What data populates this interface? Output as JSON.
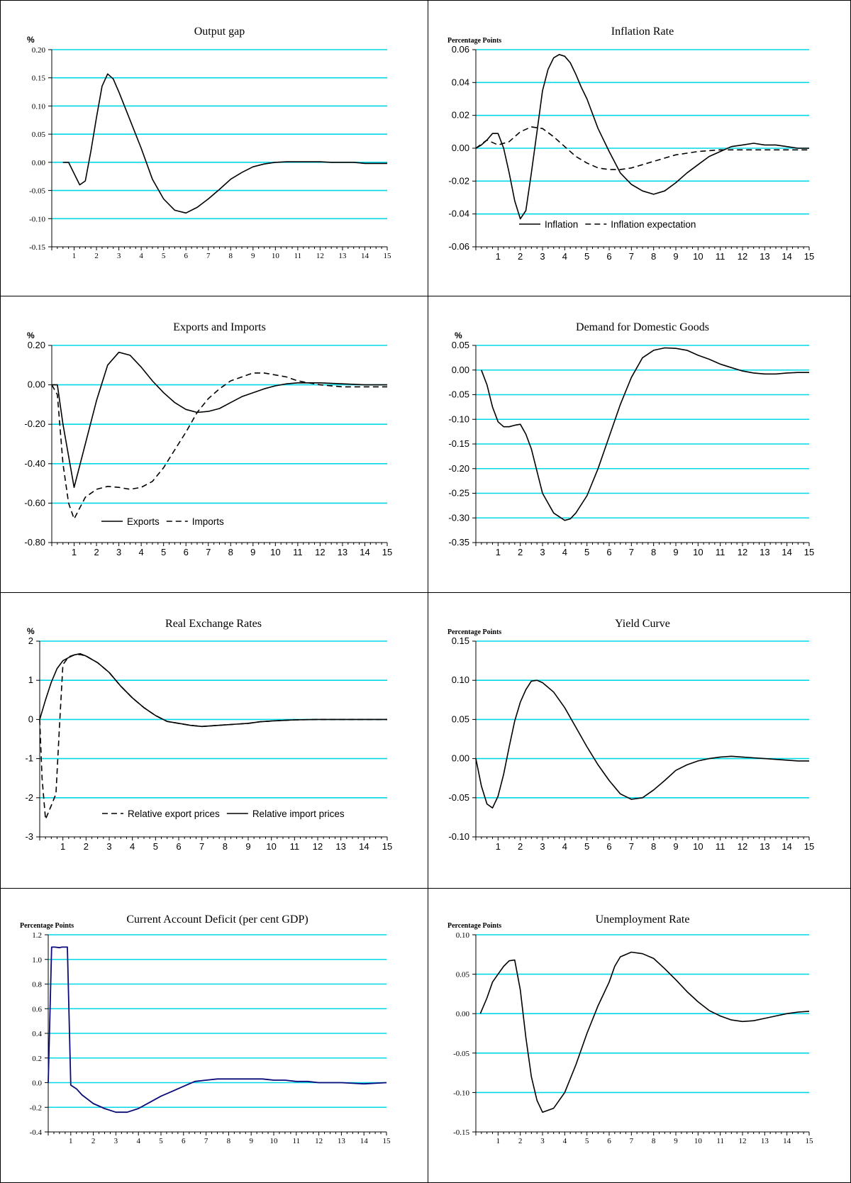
{
  "chart_data": [
    {
      "type": "line",
      "title": "Output gap",
      "unit": "%",
      "ylim": [
        -0.15,
        0.2
      ],
      "yticks": [
        "0.20",
        "0.15",
        "0.10",
        "0.05",
        "0.00",
        "-0.05",
        "-0.10",
        "-0.15"
      ],
      "xlim": [
        0,
        15
      ],
      "xticks": [
        "1",
        "2",
        "3",
        "4",
        "5",
        "6",
        "7",
        "8",
        "9",
        "10",
        "11",
        "12",
        "13",
        "14",
        "15"
      ],
      "grid": true,
      "series": [
        {
          "style": "solid",
          "color": "#000000",
          "x": [
            0.5,
            0.75,
            1,
            1.25,
            1.5,
            1.75,
            2,
            2.25,
            2.5,
            2.75,
            3,
            3.5,
            4,
            4.5,
            5,
            5.5,
            6,
            6.5,
            7,
            7.5,
            8,
            8.5,
            9,
            9.5,
            10,
            10.5,
            11,
            11.5,
            12,
            12.5,
            13,
            13.5,
            14,
            14.5,
            15
          ],
          "y": [
            0,
            0,
            -0.02,
            -0.04,
            -0.033,
            0.02,
            0.08,
            0.135,
            0.157,
            0.148,
            0.125,
            0.075,
            0.025,
            -0.03,
            -0.065,
            -0.085,
            -0.09,
            -0.08,
            -0.065,
            -0.048,
            -0.03,
            -0.018,
            -0.008,
            -0.003,
            0,
            0.001,
            0.001,
            0.001,
            0.001,
            0,
            0,
            0,
            -0.002,
            -0.002,
            -0.002
          ]
        }
      ]
    },
    {
      "type": "line",
      "title": "Inflation Rate",
      "unit": "Percentage Points",
      "ylim": [
        -0.06,
        0.06
      ],
      "yticks": [
        "0.06",
        "0.04",
        "0.02",
        "0.00",
        "-0.02",
        "-0.04",
        "-0.06"
      ],
      "xlim": [
        0,
        15
      ],
      "xticks": [
        "1",
        "2",
        "3",
        "4",
        "5",
        "6",
        "7",
        "8",
        "9",
        "10",
        "11",
        "12",
        "13",
        "14",
        "15"
      ],
      "grid": true,
      "legend": {
        "placement": "bottom-center",
        "items": [
          "Inflation",
          "Inflation expectation"
        ]
      },
      "series": [
        {
          "name": "Inflation",
          "style": "solid",
          "color": "#000000",
          "x": [
            0,
            0.25,
            0.5,
            0.75,
            1,
            1.25,
            1.5,
            1.75,
            2,
            2.25,
            2.5,
            2.75,
            3,
            3.25,
            3.5,
            3.75,
            4,
            4.25,
            4.5,
            4.75,
            5,
            5.5,
            6,
            6.5,
            7,
            7.5,
            8,
            8.5,
            9,
            9.5,
            10,
            10.5,
            11,
            11.5,
            12,
            12.5,
            13,
            13.5,
            14,
            14.5,
            15
          ],
          "y": [
            0,
            0.002,
            0.005,
            0.009,
            0.009,
            0,
            -0.015,
            -0.032,
            -0.043,
            -0.038,
            -0.015,
            0.01,
            0.035,
            0.048,
            0.055,
            0.057,
            0.056,
            0.052,
            0.045,
            0.037,
            0.03,
            0.012,
            -0.002,
            -0.015,
            -0.022,
            -0.026,
            -0.028,
            -0.026,
            -0.021,
            -0.015,
            -0.01,
            -0.005,
            -0.002,
            0.001,
            0.002,
            0.003,
            0.002,
            0.002,
            0.001,
            0,
            0
          ]
        },
        {
          "name": "Inflation expectation",
          "style": "dashed",
          "color": "#000000",
          "x": [
            0,
            0.5,
            1,
            1.5,
            2,
            2.5,
            3,
            3.5,
            4,
            4.5,
            5,
            5.5,
            6,
            6.5,
            7,
            7.5,
            8,
            8.5,
            9,
            9.5,
            10,
            11,
            12,
            13,
            14,
            15
          ],
          "y": [
            0,
            0.005,
            0.002,
            0.004,
            0.01,
            0.013,
            0.012,
            0.007,
            0.001,
            -0.005,
            -0.009,
            -0.012,
            -0.013,
            -0.013,
            -0.012,
            -0.01,
            -0.008,
            -0.006,
            -0.004,
            -0.003,
            -0.002,
            -0.001,
            -0.001,
            -0.001,
            -0.001,
            -0.001
          ]
        }
      ]
    },
    {
      "type": "line",
      "title": "Exports and Imports",
      "unit": "%",
      "ylim": [
        -0.8,
        0.2
      ],
      "yticks": [
        "0.20",
        "0.00",
        "-0.20",
        "-0.40",
        "-0.60",
        "-0.80"
      ],
      "xlim": [
        0,
        15
      ],
      "xticks": [
        "1",
        "2",
        "3",
        "4",
        "5",
        "6",
        "7",
        "8",
        "9",
        "10",
        "11",
        "12",
        "13",
        "14",
        "15"
      ],
      "grid": true,
      "legend": {
        "placement": "bottom-left",
        "items": [
          "Exports",
          "Imports"
        ]
      },
      "series": [
        {
          "name": "Exports",
          "style": "solid",
          "color": "#000000",
          "x": [
            0,
            0.25,
            0.5,
            1,
            1.5,
            2,
            2.5,
            3,
            3.5,
            4,
            4.5,
            5,
            5.5,
            6,
            6.5,
            7,
            7.5,
            8,
            8.5,
            9,
            9.5,
            10,
            10.5,
            11,
            12,
            13,
            14,
            15
          ],
          "y": [
            0,
            0,
            -0.2,
            -0.52,
            -0.3,
            -0.08,
            0.1,
            0.165,
            0.15,
            0.09,
            0.02,
            -0.04,
            -0.09,
            -0.125,
            -0.14,
            -0.135,
            -0.12,
            -0.09,
            -0.06,
            -0.04,
            -0.02,
            -0.005,
            0.005,
            0.01,
            0.01,
            0.005,
            0,
            0
          ]
        },
        {
          "name": "Imports",
          "style": "dashed",
          "color": "#000000",
          "x": [
            0,
            0.25,
            0.5,
            0.75,
            1,
            1.5,
            2,
            2.5,
            3,
            3.5,
            4,
            4.5,
            5,
            5.5,
            6,
            6.5,
            7,
            7.5,
            8,
            8.5,
            9,
            9.5,
            10,
            10.5,
            11,
            11.5,
            12,
            13,
            14,
            15
          ],
          "y": [
            0,
            -0.05,
            -0.4,
            -0.6,
            -0.68,
            -0.57,
            -0.53,
            -0.515,
            -0.52,
            -0.53,
            -0.52,
            -0.49,
            -0.42,
            -0.33,
            -0.24,
            -0.14,
            -0.07,
            -0.02,
            0.02,
            0.04,
            0.06,
            0.06,
            0.05,
            0.04,
            0.02,
            0.01,
            0,
            -0.01,
            -0.01,
            -0.01
          ]
        }
      ]
    },
    {
      "type": "line",
      "title": "Demand for Domestic Goods",
      "unit": "%",
      "ylim": [
        -0.35,
        0.05
      ],
      "yticks": [
        "0.05",
        "0.00",
        "-0.05",
        "-0.10",
        "-0.15",
        "-0.20",
        "-0.25",
        "-0.30",
        "-0.35"
      ],
      "xlim": [
        0,
        15
      ],
      "xticks": [
        "1",
        "2",
        "3",
        "4",
        "5",
        "6",
        "7",
        "8",
        "9",
        "10",
        "11",
        "12",
        "13",
        "14",
        "15"
      ],
      "grid": true,
      "series": [
        {
          "style": "solid",
          "color": "#000000",
          "x": [
            0.25,
            0.5,
            0.75,
            1,
            1.25,
            1.5,
            1.75,
            2,
            2.25,
            2.5,
            3,
            3.5,
            4,
            4.25,
            4.5,
            5,
            5.5,
            6,
            6.5,
            7,
            7.5,
            8,
            8.5,
            9,
            9.5,
            10,
            10.5,
            11,
            11.5,
            12,
            12.5,
            13,
            13.5,
            14,
            14.5,
            15
          ],
          "y": [
            0,
            -0.03,
            -0.075,
            -0.105,
            -0.115,
            -0.115,
            -0.112,
            -0.11,
            -0.13,
            -0.16,
            -0.25,
            -0.29,
            -0.305,
            -0.302,
            -0.29,
            -0.255,
            -0.2,
            -0.135,
            -0.07,
            -0.015,
            0.025,
            0.04,
            0.045,
            0.044,
            0.04,
            0.03,
            0.022,
            0.012,
            0.005,
            -0.002,
            -0.006,
            -0.008,
            -0.008,
            -0.006,
            -0.005,
            -0.005
          ]
        }
      ]
    },
    {
      "type": "line",
      "title": "Real Exchange Rates",
      "unit": "%",
      "ylim": [
        -3,
        2
      ],
      "yticks": [
        "2",
        "1",
        "0",
        "-1",
        "-2",
        "-3"
      ],
      "xlim": [
        0,
        15
      ],
      "xticks": [
        "1",
        "2",
        "3",
        "4",
        "5",
        "6",
        "7",
        "8",
        "9",
        "10",
        "11",
        "12",
        "13",
        "14",
        "15"
      ],
      "grid": true,
      "legend": {
        "placement": "bottom-center",
        "items": [
          "Relative export prices",
          "Relative import prices"
        ]
      },
      "series": [
        {
          "name": "Relative export prices",
          "style": "dashed",
          "color": "#000000",
          "x": [
            0,
            0.1,
            0.25,
            0.5,
            0.7,
            0.85,
            1,
            1.25,
            1.5,
            1.75,
            2,
            2.5,
            3,
            3.5,
            4,
            4.5,
            5,
            5.5,
            6,
            6.5,
            7,
            7.5,
            8,
            8.5,
            9,
            9.5,
            10,
            11,
            12,
            13,
            14,
            15
          ],
          "y": [
            0,
            -1.5,
            -2.55,
            -2.2,
            -1.9,
            -0.2,
            1.4,
            1.6,
            1.65,
            1.66,
            1.62,
            1.45,
            1.2,
            0.85,
            0.55,
            0.3,
            0.1,
            -0.05,
            -0.1,
            -0.15,
            -0.18,
            -0.16,
            -0.14,
            -0.12,
            -0.1,
            -0.06,
            -0.04,
            -0.01,
            0,
            0,
            0,
            0
          ]
        },
        {
          "name": "Relative import prices",
          "style": "solid",
          "color": "#000000",
          "x": [
            0,
            0.25,
            0.5,
            0.75,
            1,
            1.25,
            1.5,
            1.75,
            2,
            2.5,
            3,
            3.5,
            4,
            4.5,
            5,
            5.5,
            6,
            6.5,
            7,
            7.5,
            8,
            8.5,
            9,
            9.5,
            10,
            11,
            12,
            13,
            14,
            15
          ],
          "y": [
            0,
            0.5,
            0.95,
            1.3,
            1.5,
            1.58,
            1.65,
            1.68,
            1.62,
            1.45,
            1.2,
            0.85,
            0.55,
            0.3,
            0.1,
            -0.05,
            -0.1,
            -0.15,
            -0.18,
            -0.16,
            -0.14,
            -0.12,
            -0.1,
            -0.06,
            -0.04,
            -0.01,
            0,
            0,
            0,
            0
          ]
        }
      ]
    },
    {
      "type": "line",
      "title": "Yield Curve",
      "unit": "Percentage Points",
      "ylim": [
        -0.1,
        0.15
      ],
      "yticks": [
        "0.15",
        "0.10",
        "0.05",
        "0.00",
        "-0.05",
        "-0.10"
      ],
      "xlim": [
        0,
        15
      ],
      "xticks": [
        "1",
        "2",
        "3",
        "4",
        "5",
        "6",
        "7",
        "8",
        "9",
        "10",
        "11",
        "12",
        "13",
        "14",
        "15"
      ],
      "grid": true,
      "series": [
        {
          "style": "solid",
          "color": "#000000",
          "x": [
            0,
            0.25,
            0.5,
            0.75,
            1,
            1.25,
            1.5,
            1.75,
            2,
            2.25,
            2.5,
            2.75,
            3,
            3.5,
            4,
            4.5,
            5,
            5.5,
            6,
            6.5,
            7,
            7.5,
            8,
            8.5,
            9,
            9.5,
            10,
            10.5,
            11,
            11.5,
            12,
            12.5,
            13,
            13.5,
            14,
            14.5,
            15
          ],
          "y": [
            0,
            -0.035,
            -0.058,
            -0.063,
            -0.048,
            -0.02,
            0.015,
            0.048,
            0.072,
            0.088,
            0.099,
            0.1,
            0.097,
            0.085,
            0.065,
            0.04,
            0.015,
            -0.008,
            -0.028,
            -0.045,
            -0.052,
            -0.05,
            -0.04,
            -0.028,
            -0.015,
            -0.008,
            -0.003,
            0,
            0.002,
            0.003,
            0.002,
            0.001,
            0,
            -0.001,
            -0.002,
            -0.003,
            -0.003
          ]
        }
      ]
    },
    {
      "type": "line",
      "title": "Current Account Deficit (per cent GDP)",
      "unit": "Percentage Points",
      "ylim": [
        -0.4,
        1.2
      ],
      "yticks": [
        "1.2",
        "1.0",
        "0.8",
        "0.6",
        "0.4",
        "0.2",
        "0.0",
        "-0.2",
        "-0.4"
      ],
      "xlim": [
        0,
        15
      ],
      "xticks": [
        "1",
        "2",
        "3",
        "4",
        "5",
        "6",
        "7",
        "8",
        "9",
        "10",
        "11",
        "12",
        "13",
        "14",
        "15"
      ],
      "grid": true,
      "series": [
        {
          "style": "solid",
          "color": "#0a0a78",
          "x": [
            0,
            0.15,
            0.3,
            0.5,
            0.6,
            0.75,
            0.85,
            1,
            1.25,
            1.5,
            2,
            2.5,
            3,
            3.5,
            4,
            4.5,
            5,
            5.5,
            6,
            6.5,
            7,
            7.5,
            8,
            8.5,
            9,
            9.5,
            10,
            10.5,
            11,
            11.5,
            12,
            12.5,
            13,
            14,
            15
          ],
          "y": [
            0,
            1.1,
            1.1,
            1.095,
            1.1,
            1.1,
            1.1,
            -0.02,
            -0.05,
            -0.1,
            -0.17,
            -0.21,
            -0.24,
            -0.24,
            -0.21,
            -0.16,
            -0.11,
            -0.07,
            -0.03,
            0.01,
            0.02,
            0.03,
            0.03,
            0.03,
            0.03,
            0.03,
            0.02,
            0.02,
            0.01,
            0.01,
            0,
            0,
            0,
            -0.01,
            0
          ]
        }
      ]
    },
    {
      "type": "line",
      "title": "Unemployment Rate",
      "unit": "Percentage Points",
      "ylim": [
        -0.15,
        0.1
      ],
      "yticks": [
        "0.10",
        "0.05",
        "0.00",
        "-0.05",
        "-0.10",
        "-0.15"
      ],
      "xlim": [
        0,
        15
      ],
      "xticks": [
        "1",
        "2",
        "3",
        "4",
        "5",
        "6",
        "7",
        "8",
        "9",
        "10",
        "11",
        "12",
        "13",
        "14",
        "15"
      ],
      "grid": true,
      "series": [
        {
          "style": "solid",
          "color": "#000000",
          "x": [
            0.2,
            0.5,
            0.75,
            1,
            1.25,
            1.5,
            1.75,
            2,
            2.25,
            2.5,
            2.75,
            3,
            3.5,
            4,
            4.5,
            5,
            5.5,
            6,
            6.25,
            6.5,
            7,
            7.5,
            8,
            8.5,
            9,
            9.5,
            10,
            10.5,
            11,
            11.5,
            12,
            12.5,
            13,
            13.5,
            14,
            14.5,
            15
          ],
          "y": [
            0,
            0.02,
            0.04,
            0.05,
            0.06,
            0.067,
            0.068,
            0.03,
            -0.03,
            -0.08,
            -0.11,
            -0.125,
            -0.12,
            -0.1,
            -0.065,
            -0.025,
            0.01,
            0.04,
            0.06,
            0.072,
            0.078,
            0.076,
            0.07,
            0.057,
            0.043,
            0.028,
            0.015,
            0.004,
            -0.003,
            -0.008,
            -0.01,
            -0.009,
            -0.006,
            -0.003,
            0,
            0.002,
            0.003
          ]
        }
      ]
    }
  ]
}
